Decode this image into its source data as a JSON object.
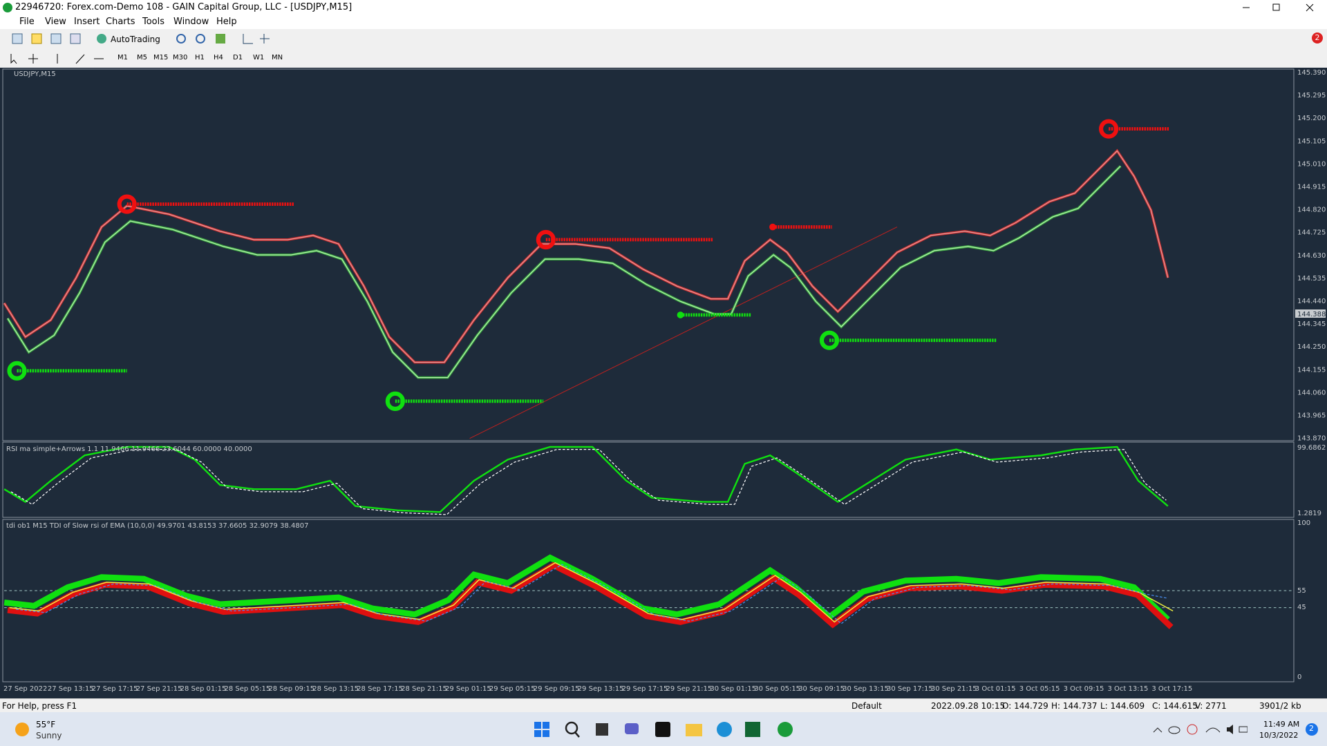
{
  "window": {
    "title": "22946720: Forex.com-Demo 108 - GAIN Capital Group, LLC - [USDJPY,M15]"
  },
  "menu": [
    "File",
    "View",
    "Insert",
    "Charts",
    "Tools",
    "Window",
    "Help"
  ],
  "toolbar": {
    "autotrading": "AutoTrading",
    "timeframes": [
      "M1",
      "M5",
      "M15",
      "M30",
      "H1",
      "H4",
      "D1",
      "W1",
      "MN"
    ],
    "alerts": "2"
  },
  "chart": {
    "symbol": "USDJPY,M15",
    "price_labels": [
      "145.390",
      "145.295",
      "145.200",
      "145.105",
      "145.010",
      "144.915",
      "144.820",
      "144.725",
      "144.630",
      "144.535",
      "144.440",
      "144.345",
      "144.250",
      "144.155",
      "144.060",
      "143.965",
      "143.870"
    ],
    "current_price": "144.388",
    "time_labels": [
      "27 Sep 2022",
      "27 Sep 13:15",
      "27 Sep 17:15",
      "27 Sep 21:15",
      "28 Sep 01:15",
      "28 Sep 05:15",
      "28 Sep 09:15",
      "28 Sep 13:15",
      "28 Sep 17:15",
      "28 Sep 21:15",
      "29 Sep 01:15",
      "29 Sep 05:15",
      "29 Sep 09:15",
      "29 Sep 13:15",
      "29 Sep 17:15",
      "29 Sep 21:15",
      "30 Sep 01:15",
      "30 Sep 05:15",
      "30 Sep 09:15",
      "30 Sep 13:15",
      "30 Sep 17:15",
      "30 Sep 21:15",
      "3 Oct 01:15",
      "3 Oct 05:15",
      "3 Oct 09:15",
      "3 Oct 13:15",
      "3 Oct 17:15"
    ]
  },
  "rsi_panel": {
    "label": "RSI ma simple+Arrows 1.1 11.9466 11.9466 23.6044 60.0000 40.0000",
    "top": "99.6862",
    "bottom": "1.2819"
  },
  "tdi_panel": {
    "label": "tdi ob1 M15 TDI of Slow rsi of EMA (10,0,0) 49.9701 43.8153 37.6605 32.9079 38.4807",
    "levels": [
      "100",
      "55",
      "45",
      "0"
    ]
  },
  "status_bar": {
    "help": "For Help, press F1",
    "profile": "Default",
    "time": "2022.09.28 10:15",
    "open": "O: 144.729",
    "high": "H: 144.737",
    "low": "L: 144.609",
    "close": "C: 144.615",
    "volume": "V: 2771",
    "traffic": "3901/2 kb"
  },
  "taskbar": {
    "temperature": "55°F",
    "weather": "Sunny",
    "clock": "11:49 AM",
    "date": "10/3/2022",
    "notifications": "2"
  }
}
